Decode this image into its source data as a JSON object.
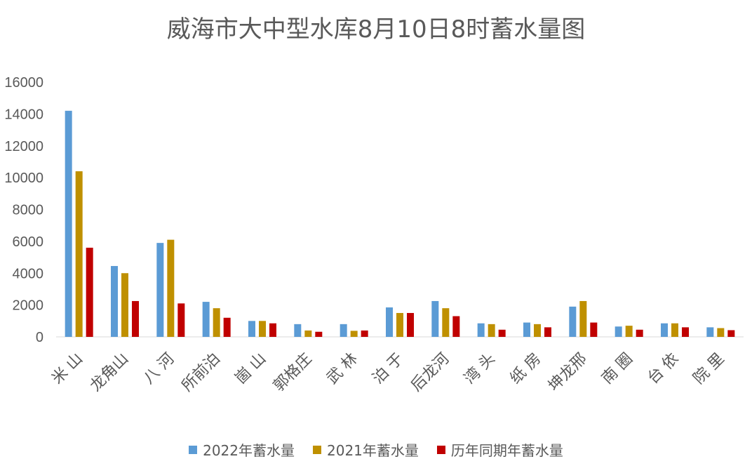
{
  "chart_data": {
    "type": "bar",
    "title": "威海市大中型水库8月10日8时蓄水量图",
    "categories": [
      "米 山",
      "龙角山",
      "八 河",
      "所前泊",
      "崮 山",
      "郭格庄",
      "武 林",
      "泊 于",
      "后龙河",
      "湾 头",
      "纸 房",
      "坤龙邢",
      "南 圈",
      "台 依",
      "院 里"
    ],
    "series": [
      {
        "name": "2022年蓄水量",
        "color": "#5b9bd5",
        "values": [
          14200,
          4450,
          5900,
          2200,
          1000,
          800,
          800,
          1850,
          2250,
          850,
          900,
          1900,
          650,
          850,
          600
        ]
      },
      {
        "name": "2021年蓄水量",
        "color": "#bf9000",
        "values": [
          10400,
          4000,
          6100,
          1800,
          1000,
          400,
          380,
          1500,
          1800,
          800,
          800,
          2250,
          700,
          850,
          550
        ]
      },
      {
        "name": "历年同期年蓄水量",
        "color": "#c00000",
        "values": [
          5600,
          2250,
          2100,
          1200,
          850,
          320,
          400,
          1500,
          1300,
          450,
          600,
          900,
          450,
          600,
          420
        ]
      }
    ],
    "yticks": [
      "0",
      "2000",
      "4000",
      "6000",
      "8000",
      "10000",
      "12000",
      "14000",
      "16000"
    ],
    "ylim": [
      0,
      16000
    ],
    "grid": false,
    "legend_position": "bottom"
  }
}
